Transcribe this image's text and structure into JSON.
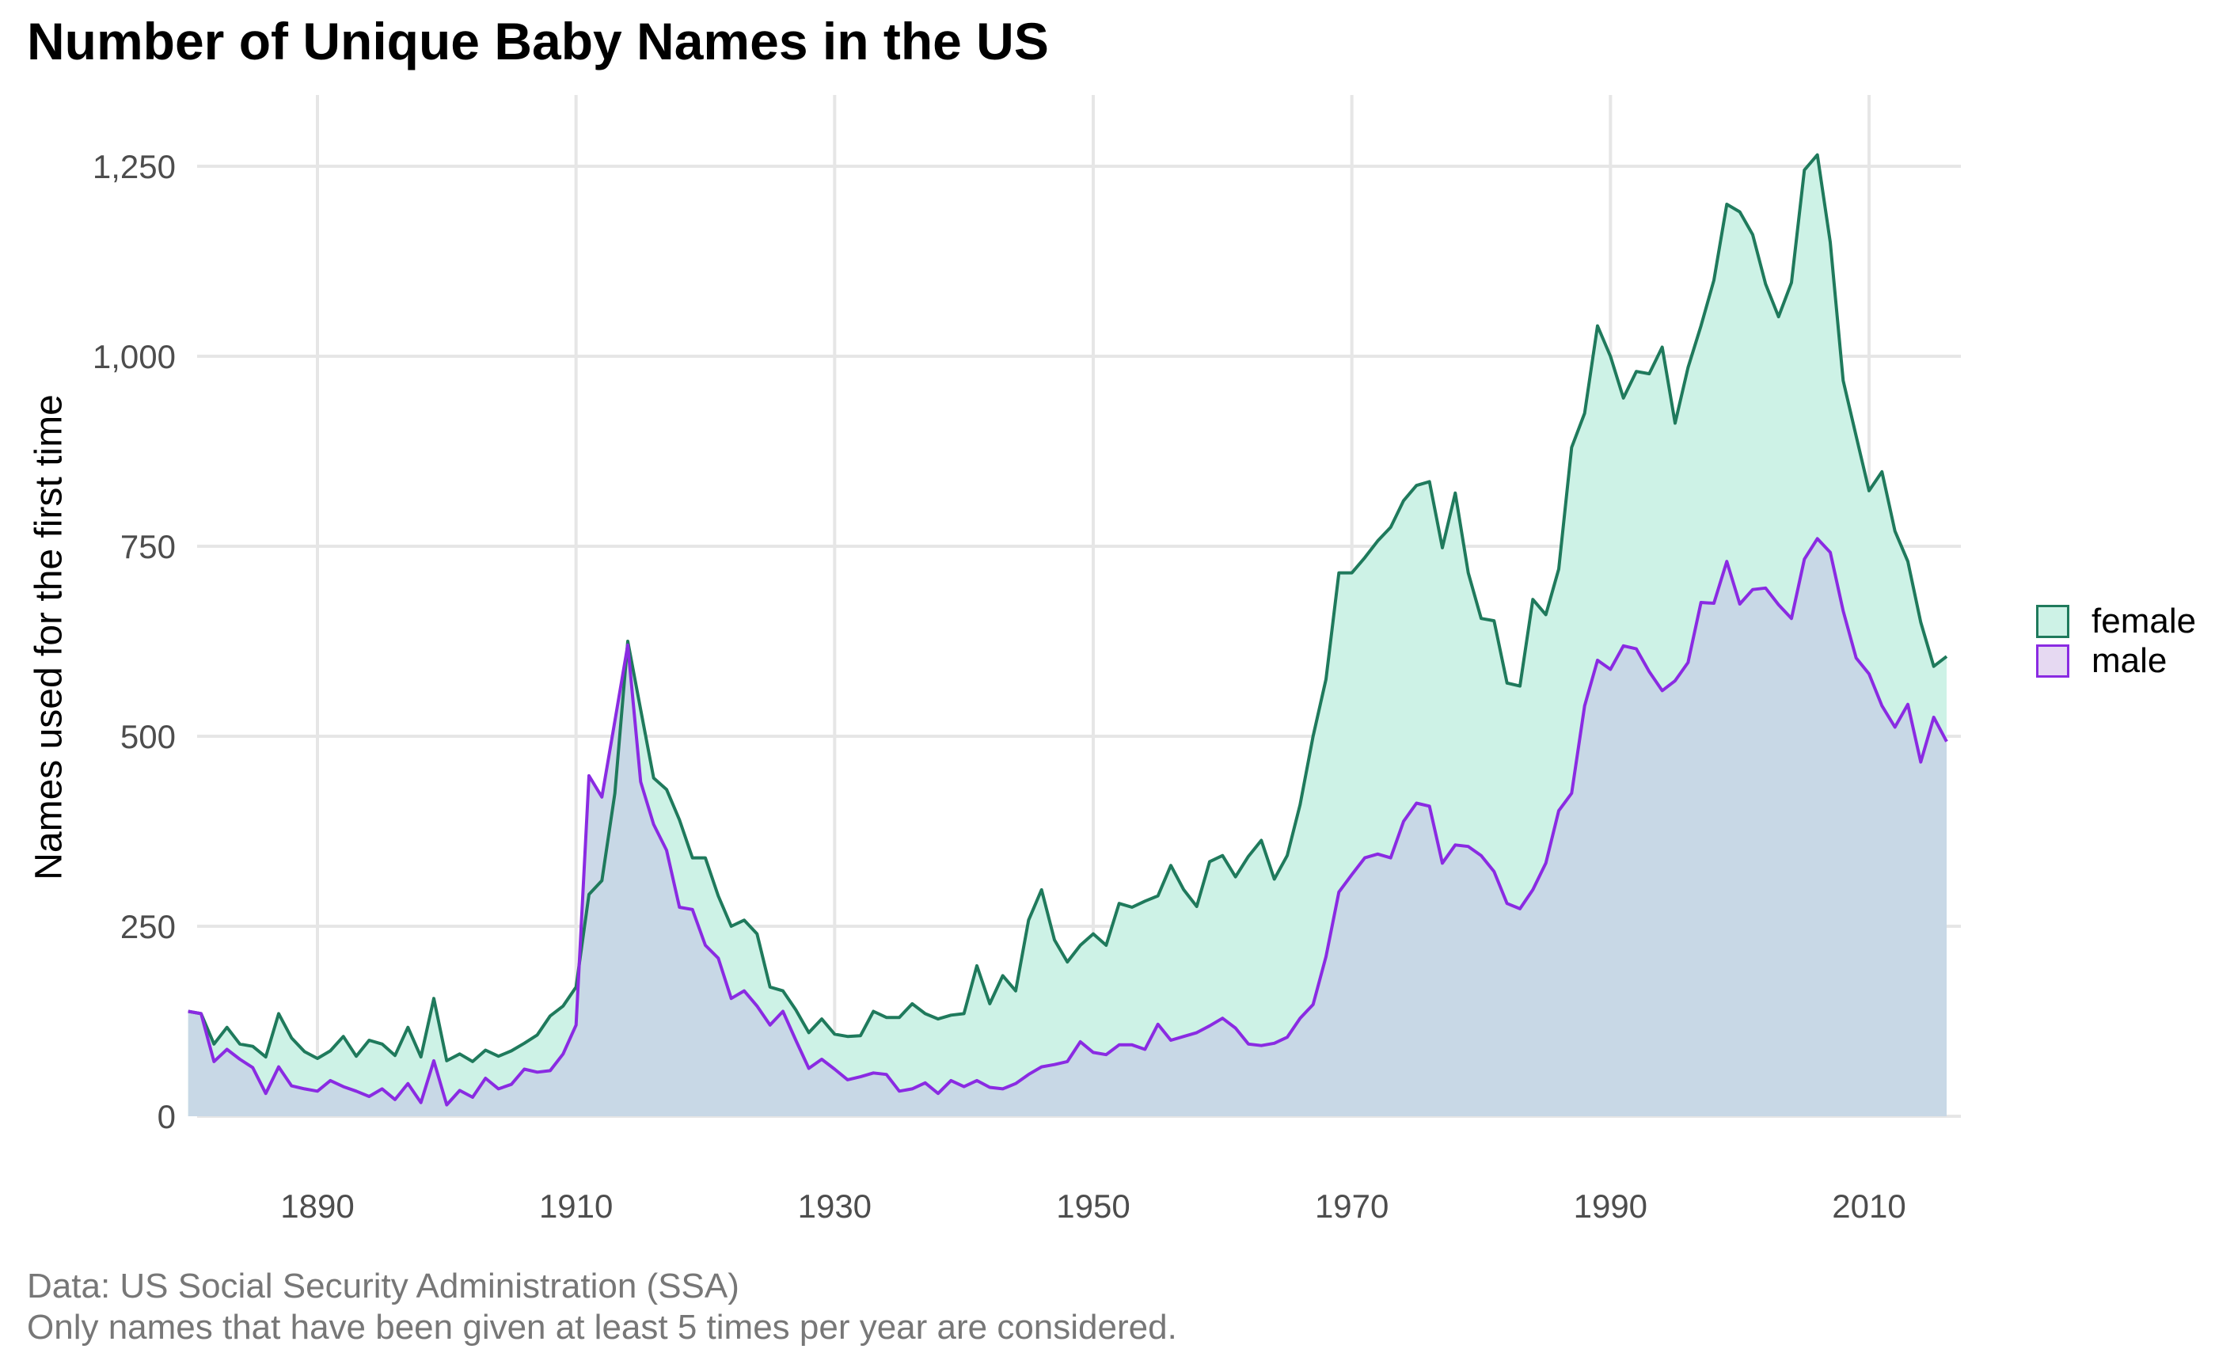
{
  "title": "Number of Unique Baby Names in the US",
  "caption_line1": "Data: US Social Security Administration (SSA)",
  "caption_line2": "Only names that have been given at least 5 times per year are considered.",
  "colors": {
    "female_line": "#1f7a5c",
    "female_fill": "#cdf2e6",
    "male_line": "#8a2be2",
    "male_fill": "#c8d6e6",
    "grid": "#e6e6e6"
  },
  "chart_data": {
    "type": "area",
    "title": "Number of Unique Baby Names in the US",
    "xlabel": "",
    "ylabel": "Names used for the first time",
    "xlim": [
      1880,
      2017
    ],
    "ylim": [
      0,
      1250
    ],
    "x_ticks": [
      "1890",
      "1910",
      "1930",
      "1950",
      "1970",
      "1990",
      "2010"
    ],
    "y_ticks": [
      "0",
      "250",
      "500",
      "750",
      "1,000",
      "1,250"
    ],
    "grid": true,
    "legend_position": "right",
    "legend": [
      "female",
      "male"
    ],
    "x_start": 1880,
    "series": [
      {
        "name": "female",
        "values": [
          138,
          135,
          95,
          117,
          95,
          92,
          78,
          135,
          103,
          85,
          76,
          86,
          105,
          79,
          100,
          95,
          80,
          117,
          78,
          155,
          73,
          82,
          72,
          87,
          79,
          86,
          96,
          107,
          132,
          145,
          170,
          292,
          310,
          425,
          625,
          535,
          445,
          430,
          390,
          340,
          340,
          290,
          250,
          258,
          240,
          170,
          165,
          140,
          110,
          128,
          108,
          105,
          106,
          138,
          130,
          130,
          148,
          135,
          128,
          133,
          135,
          198,
          148,
          185,
          165,
          258,
          298,
          232,
          203,
          225,
          240,
          225,
          280,
          275,
          283,
          290,
          330,
          298,
          276,
          335,
          343,
          315,
          342,
          363,
          312,
          343,
          410,
          500,
          575,
          715,
          715,
          735,
          757,
          775,
          810,
          830,
          835,
          748,
          820,
          715,
          655,
          652,
          570,
          566,
          680,
          660,
          720,
          880,
          925,
          1040,
          1000,
          945,
          980,
          977,
          1012,
          912,
          985,
          1040,
          1100,
          1200,
          1190,
          1160,
          1095,
          1052,
          1097,
          1245,
          1265,
          1150,
          968,
          895,
          823,
          848,
          770,
          730,
          650,
          592,
          605
        ]
      },
      {
        "name": "male",
        "values": [
          138,
          135,
          72,
          88,
          75,
          64,
          30,
          65,
          40,
          36,
          33,
          47,
          39,
          33,
          26,
          36,
          22,
          43,
          18,
          73,
          15,
          34,
          25,
          50,
          36,
          42,
          62,
          58,
          60,
          82,
          120,
          448,
          420,
          520,
          620,
          440,
          384,
          350,
          275,
          272,
          225,
          208,
          155,
          165,
          145,
          120,
          138,
          100,
          63,
          75,
          62,
          48,
          52,
          57,
          55,
          33,
          36,
          44,
          30,
          47,
          39,
          47,
          38,
          36,
          43,
          55,
          65,
          68,
          72,
          98,
          84,
          81,
          94,
          94,
          88,
          121,
          100,
          105,
          110,
          119,
          129,
          116,
          95,
          93,
          96,
          104,
          129,
          147,
          210,
          295,
          318,
          340,
          345,
          340,
          388,
          412,
          408,
          333,
          357,
          355,
          343,
          322,
          280,
          273,
          298,
          333,
          402,
          425,
          540,
          600,
          588,
          619,
          615,
          585,
          560,
          573,
          597,
          676,
          675,
          730,
          674,
          693,
          695,
          673,
          655,
          733,
          760,
          742,
          665,
          603,
          582,
          540,
          512,
          542,
          466,
          525,
          493
        ]
      }
    ]
  }
}
